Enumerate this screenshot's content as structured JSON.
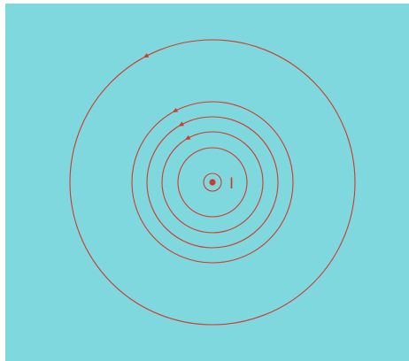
{
  "diagram": {
    "background_color": "#7fd8de",
    "line_color": "#d03b2b",
    "current_label": "I",
    "rings": [
      {
        "name": "ring-1",
        "direction": "counterclockwise",
        "has_arrow": false
      },
      {
        "name": "ring-2",
        "direction": "counterclockwise",
        "has_arrow": false
      },
      {
        "name": "ring-3",
        "direction": "counterclockwise",
        "has_arrow": true
      },
      {
        "name": "ring-4",
        "direction": "counterclockwise",
        "has_arrow": true
      },
      {
        "name": "ring-5",
        "direction": "counterclockwise",
        "has_arrow": true
      },
      {
        "name": "ring-6",
        "direction": "counterclockwise",
        "has_arrow": true
      }
    ]
  }
}
